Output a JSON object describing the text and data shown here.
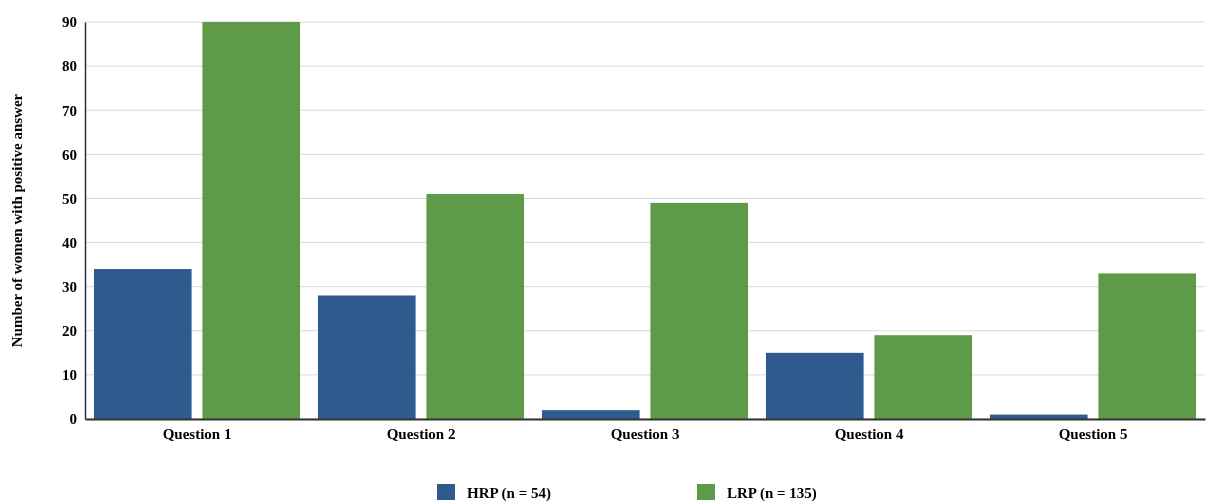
{
  "chart_data": {
    "type": "bar",
    "ylabel": "Number of women with positive answer",
    "categories": [
      "Question 1",
      "Question 2",
      "Question 3",
      "Question 4",
      "Question 5"
    ],
    "series": [
      {
        "name": "HRP (n = 54)",
        "color": "#2e5a8e",
        "values": [
          34,
          28,
          2,
          15,
          1
        ]
      },
      {
        "name": "LRP (n = 135)",
        "color": "#5e9a48",
        "values": [
          90,
          51,
          49,
          19,
          33
        ]
      }
    ],
    "ylim": [
      0,
      90
    ],
    "yticks": [
      0,
      10,
      20,
      30,
      40,
      50,
      60,
      70,
      80,
      90
    ],
    "grid": "y",
    "legend": "bottom"
  }
}
